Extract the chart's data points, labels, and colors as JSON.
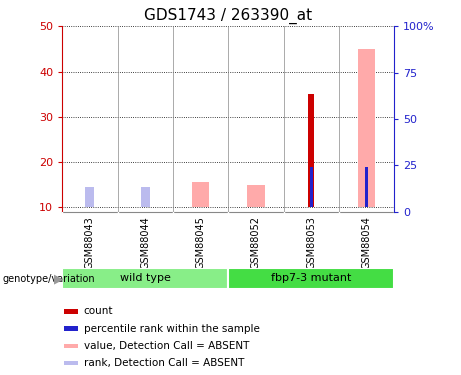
{
  "title": "GDS1743 / 263390_at",
  "samples": [
    "GSM88043",
    "GSM88044",
    "GSM88045",
    "GSM88052",
    "GSM88053",
    "GSM88054"
  ],
  "group_labels": [
    "wild type",
    "fbp7-3 mutant"
  ],
  "ylim_left": [
    9,
    50
  ],
  "ylim_right": [
    0,
    100
  ],
  "yticks_left": [
    10,
    20,
    30,
    40,
    50
  ],
  "yticks_right": [
    0,
    25,
    50,
    75,
    100
  ],
  "yticklabels_right": [
    "0",
    "25",
    "50",
    "75",
    "100%"
  ],
  "count_values": [
    null,
    null,
    null,
    null,
    35,
    null
  ],
  "rank_values": [
    null,
    null,
    null,
    null,
    19,
    19
  ],
  "absent_value_values": [
    null,
    null,
    15.5,
    15,
    null,
    45
  ],
  "absent_rank_values": [
    14.5,
    14.5,
    null,
    null,
    null,
    null
  ],
  "bar_bottom": 10,
  "count_color": "#cc0000",
  "rank_color": "#2222cc",
  "absent_value_color": "#ffaaaa",
  "absent_rank_color": "#bbbbee",
  "bg_label": "#cccccc",
  "bg_group_wt": "#88ee88",
  "bg_group_mut": "#44dd44",
  "axis_left_color": "#cc0000",
  "axis_right_color": "#2222cc",
  "legend_items": [
    {
      "label": "count",
      "color": "#cc0000"
    },
    {
      "label": "percentile rank within the sample",
      "color": "#2222cc"
    },
    {
      "label": "value, Detection Call = ABSENT",
      "color": "#ffaaaa"
    },
    {
      "label": "rank, Detection Call = ABSENT",
      "color": "#bbbbee"
    }
  ]
}
